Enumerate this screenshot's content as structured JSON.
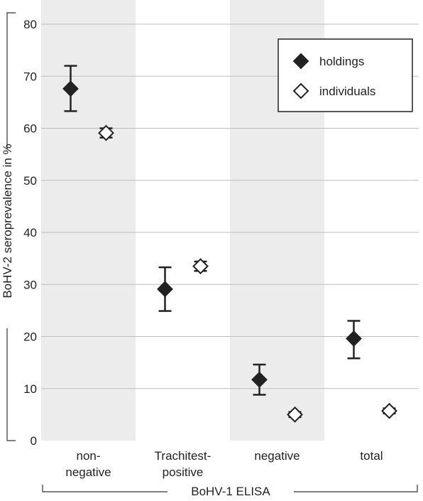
{
  "chart_data": {
    "type": "scatter",
    "categories": [
      [
        "non-",
        "negative"
      ],
      [
        "Trachitest-",
        "positive"
      ],
      [
        "negative"
      ],
      [
        "total"
      ]
    ],
    "series": [
      {
        "name": "holdings",
        "marker": "filled-diamond",
        "values": [
          67.6,
          29.1,
          11.7,
          19.6
        ],
        "err_low": [
          63.3,
          24.9,
          8.8,
          15.8
        ],
        "err_high": [
          72.0,
          33.3,
          14.6,
          23.0
        ]
      },
      {
        "name": "individuals",
        "marker": "open-diamond",
        "values": [
          59.1,
          33.5,
          5.0,
          5.7
        ],
        "err_low": [
          58.2,
          32.6,
          4.5,
          5.2
        ],
        "err_high": [
          60.0,
          34.4,
          5.5,
          6.2
        ]
      }
    ],
    "ylabel": "BoHV-2 seroprevalence in %",
    "xlabel": "BoHV-1 ELISA",
    "ylim": [
      0,
      80
    ],
    "yticks": [
      0,
      10,
      20,
      30,
      40,
      50,
      60,
      70,
      80
    ],
    "grid": true,
    "legend_position": "top-right",
    "colors": {
      "band": "#ececec",
      "grid": "#bdbdbd",
      "marker": "#222222"
    }
  }
}
